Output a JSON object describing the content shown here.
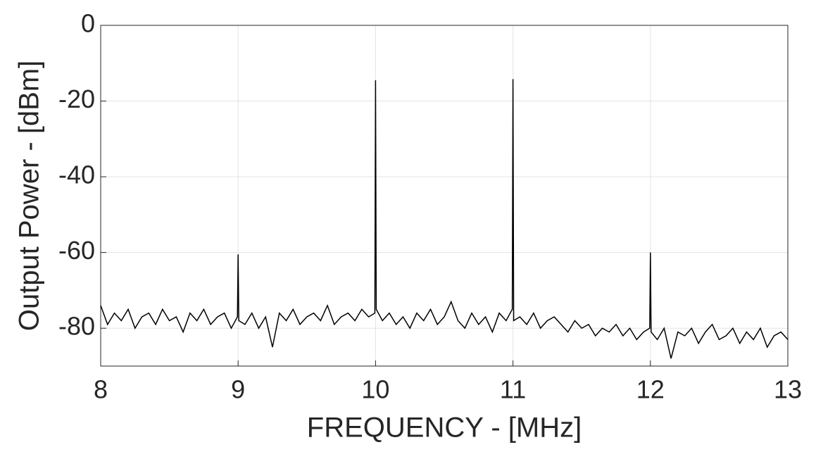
{
  "chart_data": {
    "type": "line",
    "xlabel": "FREQUENCY - [MHz]",
    "ylabel": "Output Power - [dBm]",
    "x": [
      8.0,
      8.05,
      8.1,
      8.15,
      8.2,
      8.25,
      8.3,
      8.35,
      8.4,
      8.45,
      8.5,
      8.55,
      8.6,
      8.65,
      8.7,
      8.75,
      8.8,
      8.85,
      8.9,
      8.95,
      8.995,
      9.0,
      9.005,
      9.05,
      9.1,
      9.15,
      9.2,
      9.25,
      9.3,
      9.35,
      9.4,
      9.45,
      9.5,
      9.55,
      9.6,
      9.65,
      9.7,
      9.75,
      9.8,
      9.85,
      9.9,
      9.95,
      9.995,
      10.0,
      10.005,
      10.05,
      10.1,
      10.15,
      10.2,
      10.25,
      10.3,
      10.35,
      10.4,
      10.45,
      10.5,
      10.55,
      10.6,
      10.65,
      10.7,
      10.75,
      10.8,
      10.85,
      10.9,
      10.95,
      10.995,
      11.0,
      11.005,
      11.05,
      11.1,
      11.15,
      11.2,
      11.25,
      11.3,
      11.35,
      11.4,
      11.45,
      11.5,
      11.55,
      11.6,
      11.65,
      11.7,
      11.75,
      11.8,
      11.85,
      11.9,
      11.95,
      11.995,
      12.0,
      12.005,
      12.05,
      12.1,
      12.15,
      12.2,
      12.25,
      12.3,
      12.35,
      12.4,
      12.45,
      12.5,
      12.55,
      12.6,
      12.65,
      12.7,
      12.75,
      12.8,
      12.85,
      12.9,
      12.95,
      13.0
    ],
    "values": [
      -74,
      -79,
      -76,
      -78,
      -75,
      -80,
      -77,
      -76,
      -79,
      -75,
      -78,
      -77,
      -81,
      -76,
      -78,
      -75,
      -79,
      -77,
      -76,
      -80,
      -77,
      -60.5,
      -78,
      -79,
      -76,
      -80,
      -77,
      -85,
      -76,
      -78,
      -75,
      -79,
      -77,
      -76,
      -78,
      -74,
      -79,
      -77,
      -76,
      -78,
      -75,
      -77,
      -76,
      -14.5,
      -75,
      -78,
      -76,
      -79,
      -77,
      -80,
      -76,
      -78,
      -75,
      -79,
      -77,
      -73,
      -78,
      -80,
      -76,
      -79,
      -77,
      -81,
      -76,
      -78,
      -75,
      -14.2,
      -78,
      -77,
      -79,
      -76,
      -80,
      -78,
      -77,
      -79,
      -81,
      -78,
      -80,
      -79,
      -82,
      -80,
      -81,
      -79,
      -82,
      -80,
      -83,
      -81,
      -80,
      -60,
      -81,
      -83,
      -80,
      -88,
      -81,
      -82,
      -80,
      -84,
      -81,
      -79,
      -83,
      -82,
      -80,
      -84,
      -81,
      -83,
      -80,
      -85,
      -82,
      -81,
      -83
    ],
    "color": "#000000",
    "xlim": [
      8,
      13
    ],
    "xticks": [
      8,
      9,
      10,
      11,
      12,
      13
    ],
    "ylim": [
      -90,
      0
    ],
    "yticks": [
      -80,
      -60,
      -40,
      -20,
      0
    ],
    "grid": true
  }
}
